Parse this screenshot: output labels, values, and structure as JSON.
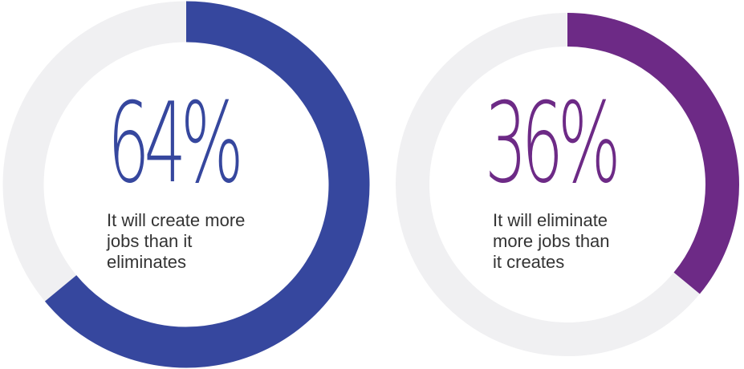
{
  "chart_data": [
    {
      "type": "pie",
      "values": [
        64,
        36
      ],
      "highlight_value": 64,
      "value_label": "64%",
      "caption": "It will create more jobs than it eliminates",
      "caption_lines": [
        "It will create more",
        "jobs than it",
        "eliminates"
      ],
      "color": "#36479e",
      "track_color": "#f0f0f2"
    },
    {
      "type": "pie",
      "values": [
        36,
        64
      ],
      "highlight_value": 36,
      "value_label": "36%",
      "caption": "It will eliminate more jobs than it creates",
      "caption_lines": [
        "It will eliminate",
        "more jobs than",
        "it creates"
      ],
      "color": "#6d2a86",
      "track_color": "#f0f0f2"
    }
  ]
}
